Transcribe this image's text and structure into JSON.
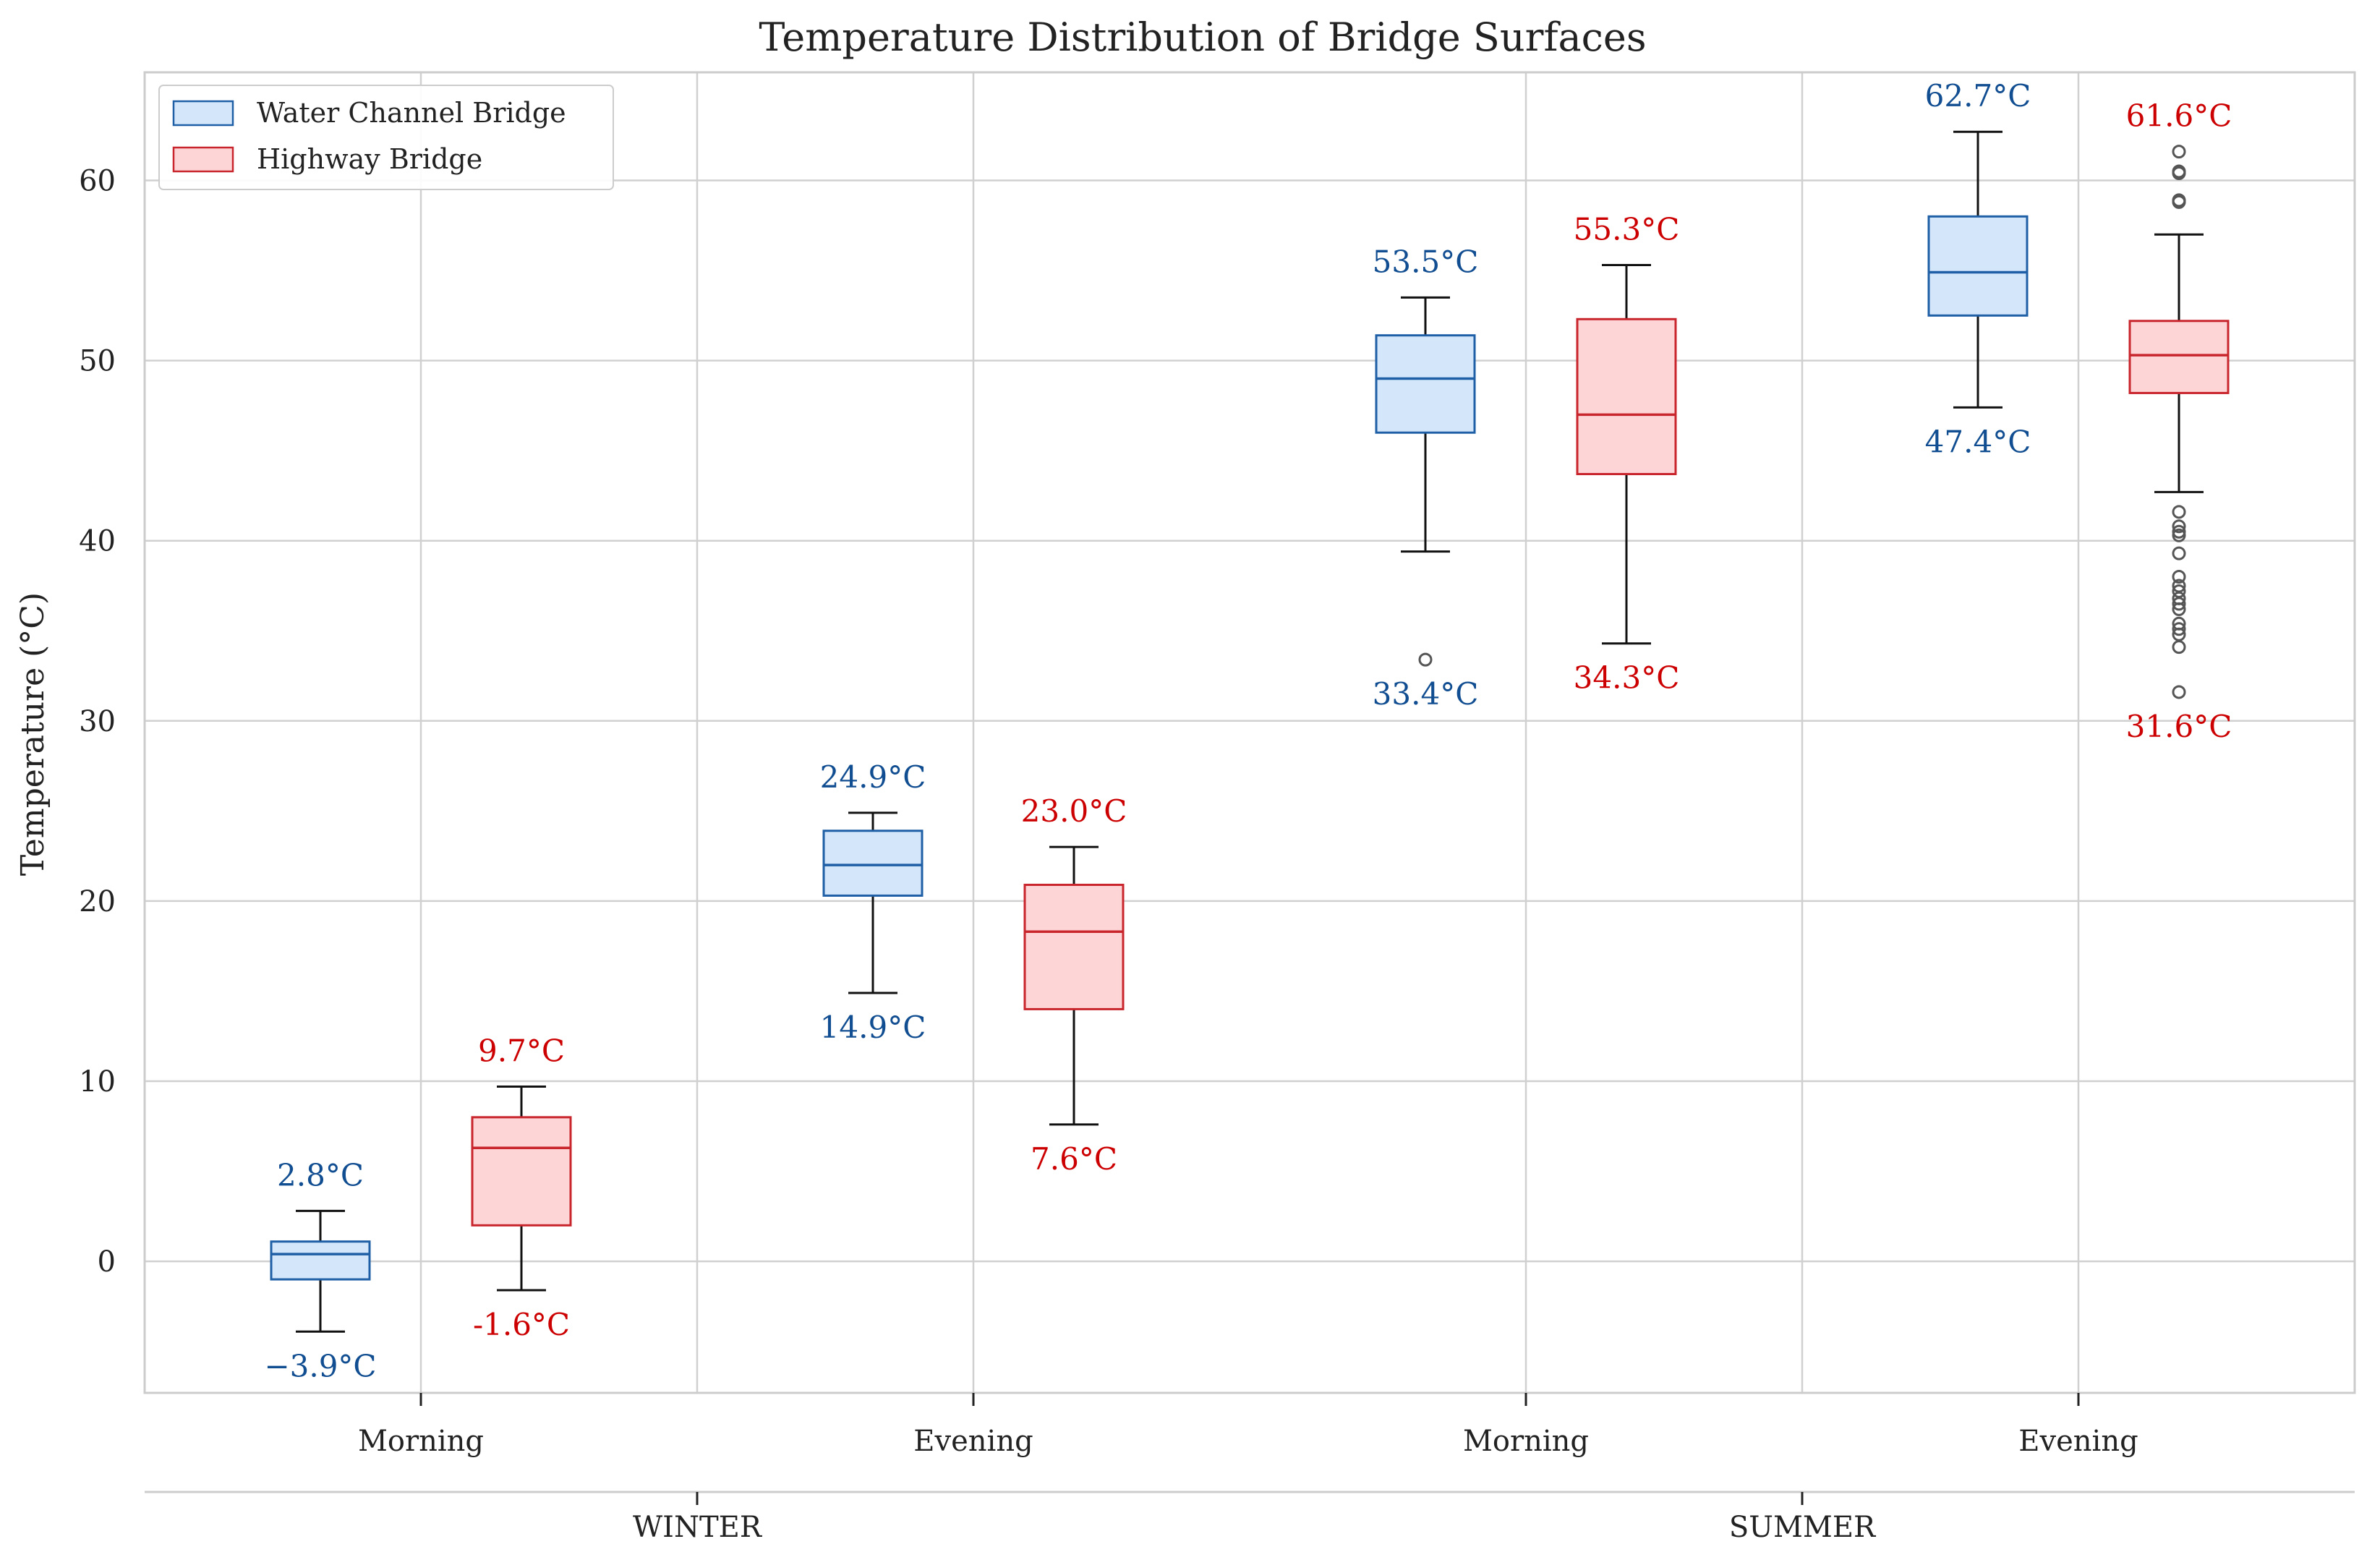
{
  "chart_data": {
    "type": "box",
    "title": "Temperature Distribution of Bridge Surfaces",
    "ylabel": "Temperature (°C)",
    "xlabel": "",
    "ylim": [
      -7.3,
      66.0
    ],
    "yticks": [
      0,
      10,
      20,
      30,
      40,
      50,
      60
    ],
    "grid": true,
    "legend_position": "top-left",
    "legend": [
      {
        "name": "Water Channel Bridge",
        "color": "#1f5fa6",
        "fill": "#d3e6fa"
      },
      {
        "name": "Highway Bridge",
        "color": "#c8252c",
        "fill": "#fdd5d7"
      }
    ],
    "categories": [
      "Morning",
      "Evening",
      "Morning",
      "Evening"
    ],
    "groups": [
      {
        "label": "WINTER",
        "categories": [
          0,
          1
        ]
      },
      {
        "label": "SUMMER",
        "categories": [
          2,
          3
        ]
      }
    ],
    "series": [
      {
        "name": "Water Channel Bridge",
        "color": "#1f5fa6",
        "fill": "#d3e6fa",
        "label_color": "#114d91",
        "boxes": [
          {
            "category": 0,
            "whisker_low": -3.9,
            "q1": -1.0,
            "median": 0.4,
            "q3": 1.1,
            "whisker_high": 2.8,
            "outliers": [],
            "max_label": "2.8°C",
            "min_label": "−3.9°C"
          },
          {
            "category": 1,
            "whisker_low": 14.9,
            "q1": 20.3,
            "median": 22.0,
            "q3": 23.9,
            "whisker_high": 24.9,
            "outliers": [],
            "max_label": "24.9°C",
            "min_label": "14.9°C"
          },
          {
            "category": 2,
            "whisker_low": 39.4,
            "q1": 46.0,
            "median": 49.0,
            "q3": 51.4,
            "whisker_high": 53.5,
            "outliers": [
              33.4
            ],
            "max_label": "53.5°C",
            "min_label": "33.4°C"
          },
          {
            "category": 3,
            "whisker_low": 47.4,
            "q1": 52.5,
            "median": 54.9,
            "q3": 58.0,
            "whisker_high": 62.7,
            "outliers": [],
            "max_label": "62.7°C",
            "min_label": "47.4°C"
          }
        ]
      },
      {
        "name": "Highway Bridge",
        "color": "#c8252c",
        "fill": "#fdd5d7",
        "label_color": "#cc0000",
        "boxes": [
          {
            "category": 0,
            "whisker_low": -1.6,
            "q1": 2.0,
            "median": 6.3,
            "q3": 8.0,
            "whisker_high": 9.7,
            "outliers": [],
            "max_label": "9.7°C",
            "min_label": "-1.6°C"
          },
          {
            "category": 1,
            "whisker_low": 7.6,
            "q1": 14.0,
            "median": 18.3,
            "q3": 20.9,
            "whisker_high": 23.0,
            "outliers": [],
            "max_label": "23.0°C",
            "min_label": "7.6°C"
          },
          {
            "category": 2,
            "whisker_low": 34.3,
            "q1": 43.7,
            "median": 47.0,
            "q3": 52.3,
            "whisker_high": 55.3,
            "outliers": [],
            "max_label": "55.3°C",
            "min_label": "34.3°C"
          },
          {
            "category": 3,
            "whisker_low": 42.7,
            "q1": 48.2,
            "median": 50.3,
            "q3": 52.2,
            "whisker_high": 57.0,
            "outliers": [
              61.6,
              60.5,
              60.4,
              58.9,
              58.8,
              41.6,
              40.8,
              40.5,
              40.3,
              39.3,
              38.0,
              37.5,
              37.2,
              36.8,
              36.5,
              36.2,
              35.4,
              35.1,
              34.8,
              34.1,
              31.6
            ],
            "max_label": "61.6°C",
            "min_label": "31.6°C"
          }
        ]
      }
    ]
  }
}
